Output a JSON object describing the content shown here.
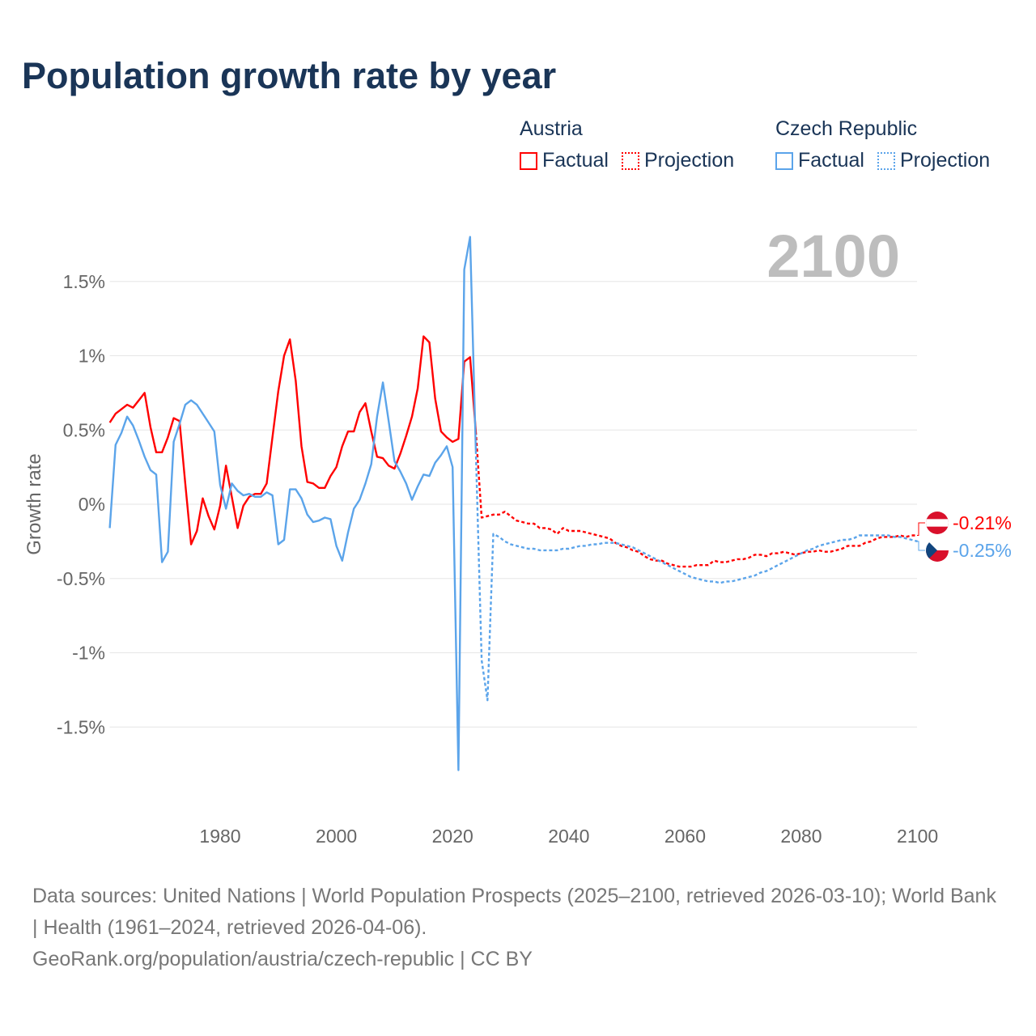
{
  "title": "Population growth rate by year",
  "legend": {
    "groups": [
      {
        "name": "Austria",
        "color": "#ff0000",
        "factual": "Factual",
        "projection": "Projection"
      },
      {
        "name": "Czech Republic",
        "color": "#5ba4ea",
        "factual": "Factual",
        "projection": "Projection"
      }
    ]
  },
  "year_badge": "2100",
  "footer": {
    "sources": "Data sources: United Nations | World Population Prospects (2025–2100, retrieved 2026-03-10); World Bank | Health (1961–2024, retrieved 2026-04-06).",
    "attribution": "GeoRank.org/population/austria/czech-republic | CC BY"
  },
  "chart_data": {
    "type": "line",
    "title": "Population growth rate by year",
    "xlabel": "",
    "ylabel": "Growth rate",
    "xlim": [
      1961,
      2100
    ],
    "ylim": [
      -2.0,
      1.9
    ],
    "yticks": [
      1.5,
      1,
      0.5,
      0,
      -0.5,
      -1,
      -1.5
    ],
    "ytick_labels": [
      "1.5%",
      "1%",
      "0.5%",
      "0%",
      "-0.5%",
      "-1%",
      "-1.5%"
    ],
    "xticks": [
      1980,
      2000,
      2020,
      2040,
      2060,
      2080,
      2100
    ],
    "xtick_labels": [
      "1980",
      "2000",
      "2020",
      "2040",
      "2060",
      "2080",
      "2100"
    ],
    "grid": true,
    "legend_position": "top-right",
    "series": [
      {
        "name": "Austria",
        "kind": "Factual",
        "color": "#ff0000",
        "start": 1961,
        "values": [
          0.55,
          0.61,
          0.64,
          0.67,
          0.65,
          0.7,
          0.75,
          0.52,
          0.35,
          0.35,
          0.45,
          0.58,
          0.56,
          0.14,
          -0.27,
          -0.18,
          0.04,
          -0.08,
          -0.17,
          -0.01,
          0.26,
          0.05,
          -0.16,
          -0.01,
          0.05,
          0.07,
          0.07,
          0.14,
          0.45,
          0.76,
          1.0,
          1.11,
          0.83,
          0.39,
          0.15,
          0.14,
          0.11,
          0.11,
          0.19,
          0.25,
          0.39,
          0.49,
          0.49,
          0.62,
          0.68,
          0.49,
          0.32,
          0.31,
          0.26,
          0.24,
          0.34,
          0.46,
          0.59,
          0.78,
          1.13,
          1.09,
          0.71,
          0.49,
          0.45,
          0.42,
          0.44,
          0.96,
          0.99,
          0.49
        ]
      },
      {
        "name": "Austria",
        "kind": "Projection",
        "color": "#ff0000",
        "start": 2024,
        "values": [
          0.49,
          -0.09,
          -0.08,
          -0.07,
          -0.07,
          -0.05,
          -0.08,
          -0.11,
          -0.12,
          -0.13,
          -0.13,
          -0.16,
          -0.16,
          -0.17,
          -0.2,
          -0.16,
          -0.18,
          -0.18,
          -0.18,
          -0.19,
          -0.2,
          -0.21,
          -0.22,
          -0.23,
          -0.26,
          -0.28,
          -0.29,
          -0.31,
          -0.32,
          -0.35,
          -0.37,
          -0.38,
          -0.38,
          -0.4,
          -0.41,
          -0.42,
          -0.42,
          -0.42,
          -0.41,
          -0.41,
          -0.41,
          -0.38,
          -0.39,
          -0.39,
          -0.38,
          -0.37,
          -0.37,
          -0.36,
          -0.34,
          -0.34,
          -0.35,
          -0.33,
          -0.33,
          -0.32,
          -0.33,
          -0.34,
          -0.33,
          -0.32,
          -0.32,
          -0.31,
          -0.32,
          -0.32,
          -0.31,
          -0.3,
          -0.28,
          -0.28,
          -0.28,
          -0.26,
          -0.25,
          -0.23,
          -0.22,
          -0.22,
          -0.22,
          -0.21,
          -0.22,
          -0.21,
          -0.21
        ]
      },
      {
        "name": "Czech Republic",
        "kind": "Factual",
        "color": "#5ba4ea",
        "start": 1961,
        "values": [
          -0.16,
          0.4,
          0.48,
          0.59,
          0.53,
          0.43,
          0.32,
          0.23,
          0.2,
          -0.39,
          -0.32,
          0.42,
          0.54,
          0.67,
          0.7,
          0.67,
          0.61,
          0.55,
          0.49,
          0.13,
          -0.03,
          0.14,
          0.09,
          0.06,
          0.07,
          0.05,
          0.05,
          0.08,
          0.06,
          -0.27,
          -0.24,
          0.1,
          0.1,
          0.04,
          -0.07,
          -0.12,
          -0.11,
          -0.09,
          -0.1,
          -0.28,
          -0.38,
          -0.19,
          -0.03,
          0.03,
          0.14,
          0.27,
          0.59,
          0.82,
          0.56,
          0.29,
          0.22,
          0.14,
          0.03,
          0.12,
          0.2,
          0.19,
          0.28,
          0.33,
          0.39,
          0.25,
          -1.79,
          1.58,
          1.8,
          0.36
        ]
      },
      {
        "name": "Czech Republic",
        "kind": "Projection",
        "color": "#5ba4ea",
        "start": 2024,
        "values": [
          0.36,
          -1.05,
          -1.32,
          -0.2,
          -0.22,
          -0.25,
          -0.27,
          -0.28,
          -0.29,
          -0.3,
          -0.3,
          -0.31,
          -0.31,
          -0.31,
          -0.31,
          -0.3,
          -0.3,
          -0.29,
          -0.28,
          -0.28,
          -0.27,
          -0.27,
          -0.26,
          -0.26,
          -0.26,
          -0.27,
          -0.28,
          -0.29,
          -0.31,
          -0.33,
          -0.35,
          -0.37,
          -0.39,
          -0.41,
          -0.43,
          -0.45,
          -0.47,
          -0.49,
          -0.5,
          -0.51,
          -0.52,
          -0.52,
          -0.53,
          -0.52,
          -0.52,
          -0.51,
          -0.5,
          -0.49,
          -0.48,
          -0.46,
          -0.45,
          -0.43,
          -0.41,
          -0.39,
          -0.37,
          -0.35,
          -0.33,
          -0.31,
          -0.3,
          -0.28,
          -0.27,
          -0.26,
          -0.25,
          -0.24,
          -0.24,
          -0.23,
          -0.21,
          -0.21,
          -0.21,
          -0.21,
          -0.21,
          -0.21,
          -0.22,
          -0.22,
          -0.23,
          -0.24,
          -0.25
        ]
      }
    ],
    "end_labels": [
      {
        "country": "Austria",
        "text": "-0.21%",
        "color": "#ff0000"
      },
      {
        "country": "Czech Republic",
        "text": "-0.25%",
        "color": "#5ba4ea"
      }
    ]
  }
}
